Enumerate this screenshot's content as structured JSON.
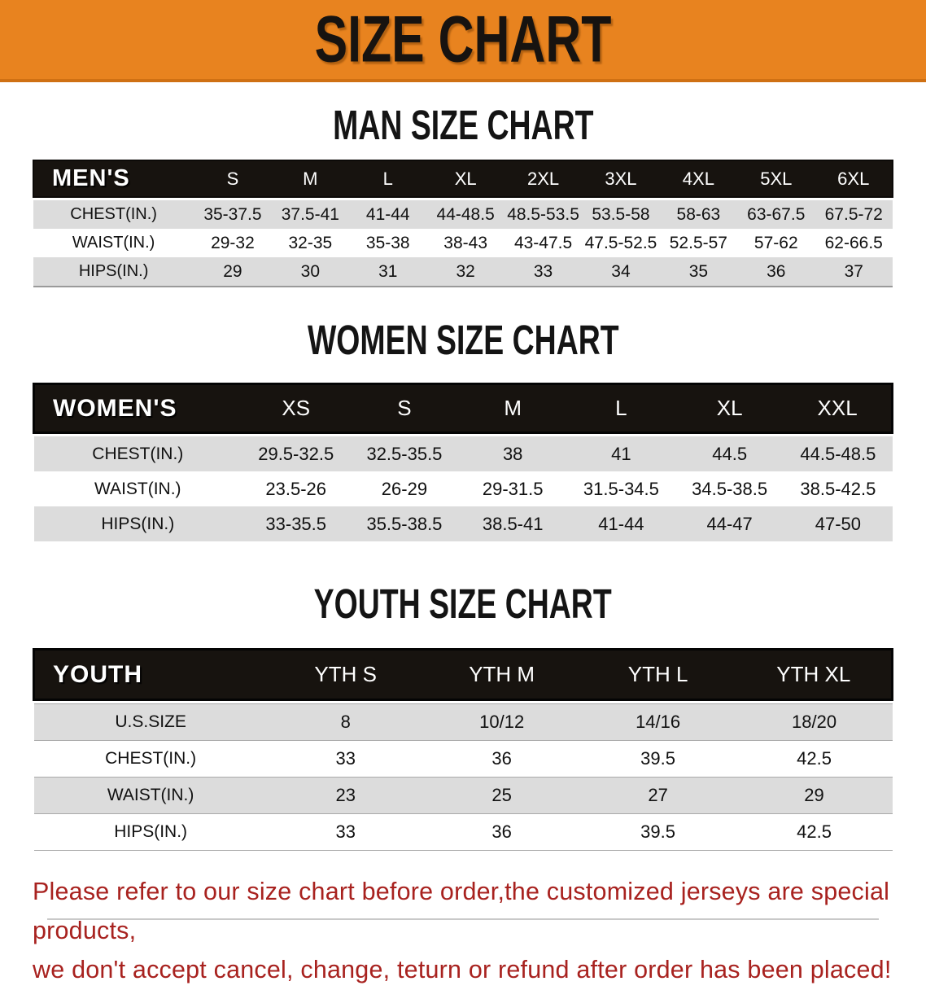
{
  "banner": {
    "title": "SIZE CHART"
  },
  "colors": {
    "banner_bg": "#e8831f",
    "banner_border": "#cf7013",
    "table_header_bg": "#17130f",
    "row_stripe_gray": "#dcdcdc",
    "disclaimer_red": "#a8221f"
  },
  "sections": [
    {
      "heading": "MAN SIZE CHART",
      "table": {
        "header_label": "MEN'S",
        "columns": [
          "S",
          "M",
          "L",
          "XL",
          "2XL",
          "3XL",
          "4XL",
          "5XL",
          "6XL"
        ],
        "rows": [
          {
            "label": "CHEST(IN.)",
            "values": [
              "35-37.5",
              "37.5-41",
              "41-44",
              "44-48.5",
              "48.5-53.5",
              "53.5-58",
              "58-63",
              "63-67.5",
              "67.5-72"
            ]
          },
          {
            "label": "WAIST(IN.)",
            "values": [
              "29-32",
              "32-35",
              "35-38",
              "38-43",
              "43-47.5",
              "47.5-52.5",
              "52.5-57",
              "57-62",
              "62-66.5"
            ]
          },
          {
            "label": "HIPS(IN.)",
            "values": [
              "29",
              "30",
              "31",
              "32",
              "33",
              "34",
              "35",
              "36",
              "37"
            ]
          }
        ]
      }
    },
    {
      "heading": "WOMEN SIZE CHART",
      "table": {
        "header_label": "WOMEN'S",
        "columns": [
          "XS",
          "S",
          "M",
          "L",
          "XL",
          "XXL"
        ],
        "rows": [
          {
            "label": "CHEST(IN.)",
            "values": [
              "29.5-32.5",
              "32.5-35.5",
              "38",
              "41",
              "44.5",
              "44.5-48.5"
            ]
          },
          {
            "label": "WAIST(IN.)",
            "values": [
              "23.5-26",
              "26-29",
              "29-31.5",
              "31.5-34.5",
              "34.5-38.5",
              "38.5-42.5"
            ]
          },
          {
            "label": "HIPS(IN.)",
            "values": [
              "33-35.5",
              "35.5-38.5",
              "38.5-41",
              "41-44",
              "44-47",
              "47-50"
            ]
          }
        ]
      }
    },
    {
      "heading": "YOUTH SIZE CHART",
      "table": {
        "header_label": "YOUTH",
        "columns": [
          "YTH S",
          "YTH M",
          "YTH L",
          "YTH XL"
        ],
        "rows": [
          {
            "label": "U.S.SIZE",
            "values": [
              "8",
              "10/12",
              "14/16",
              "18/20"
            ]
          },
          {
            "label": "CHEST(IN.)",
            "values": [
              "33",
              "36",
              "39.5",
              "42.5"
            ]
          },
          {
            "label": "WAIST(IN.)",
            "values": [
              "23",
              "25",
              "27",
              "29"
            ]
          },
          {
            "label": "HIPS(IN.)",
            "values": [
              "33",
              "36",
              "39.5",
              "42.5"
            ]
          }
        ]
      }
    }
  ],
  "disclaimer": {
    "lines": [
      "Please refer to our size chart before order,the customized jerseys are special products,",
      "we don't accept cancel, change, teturn or refund after order has been placed!"
    ]
  }
}
